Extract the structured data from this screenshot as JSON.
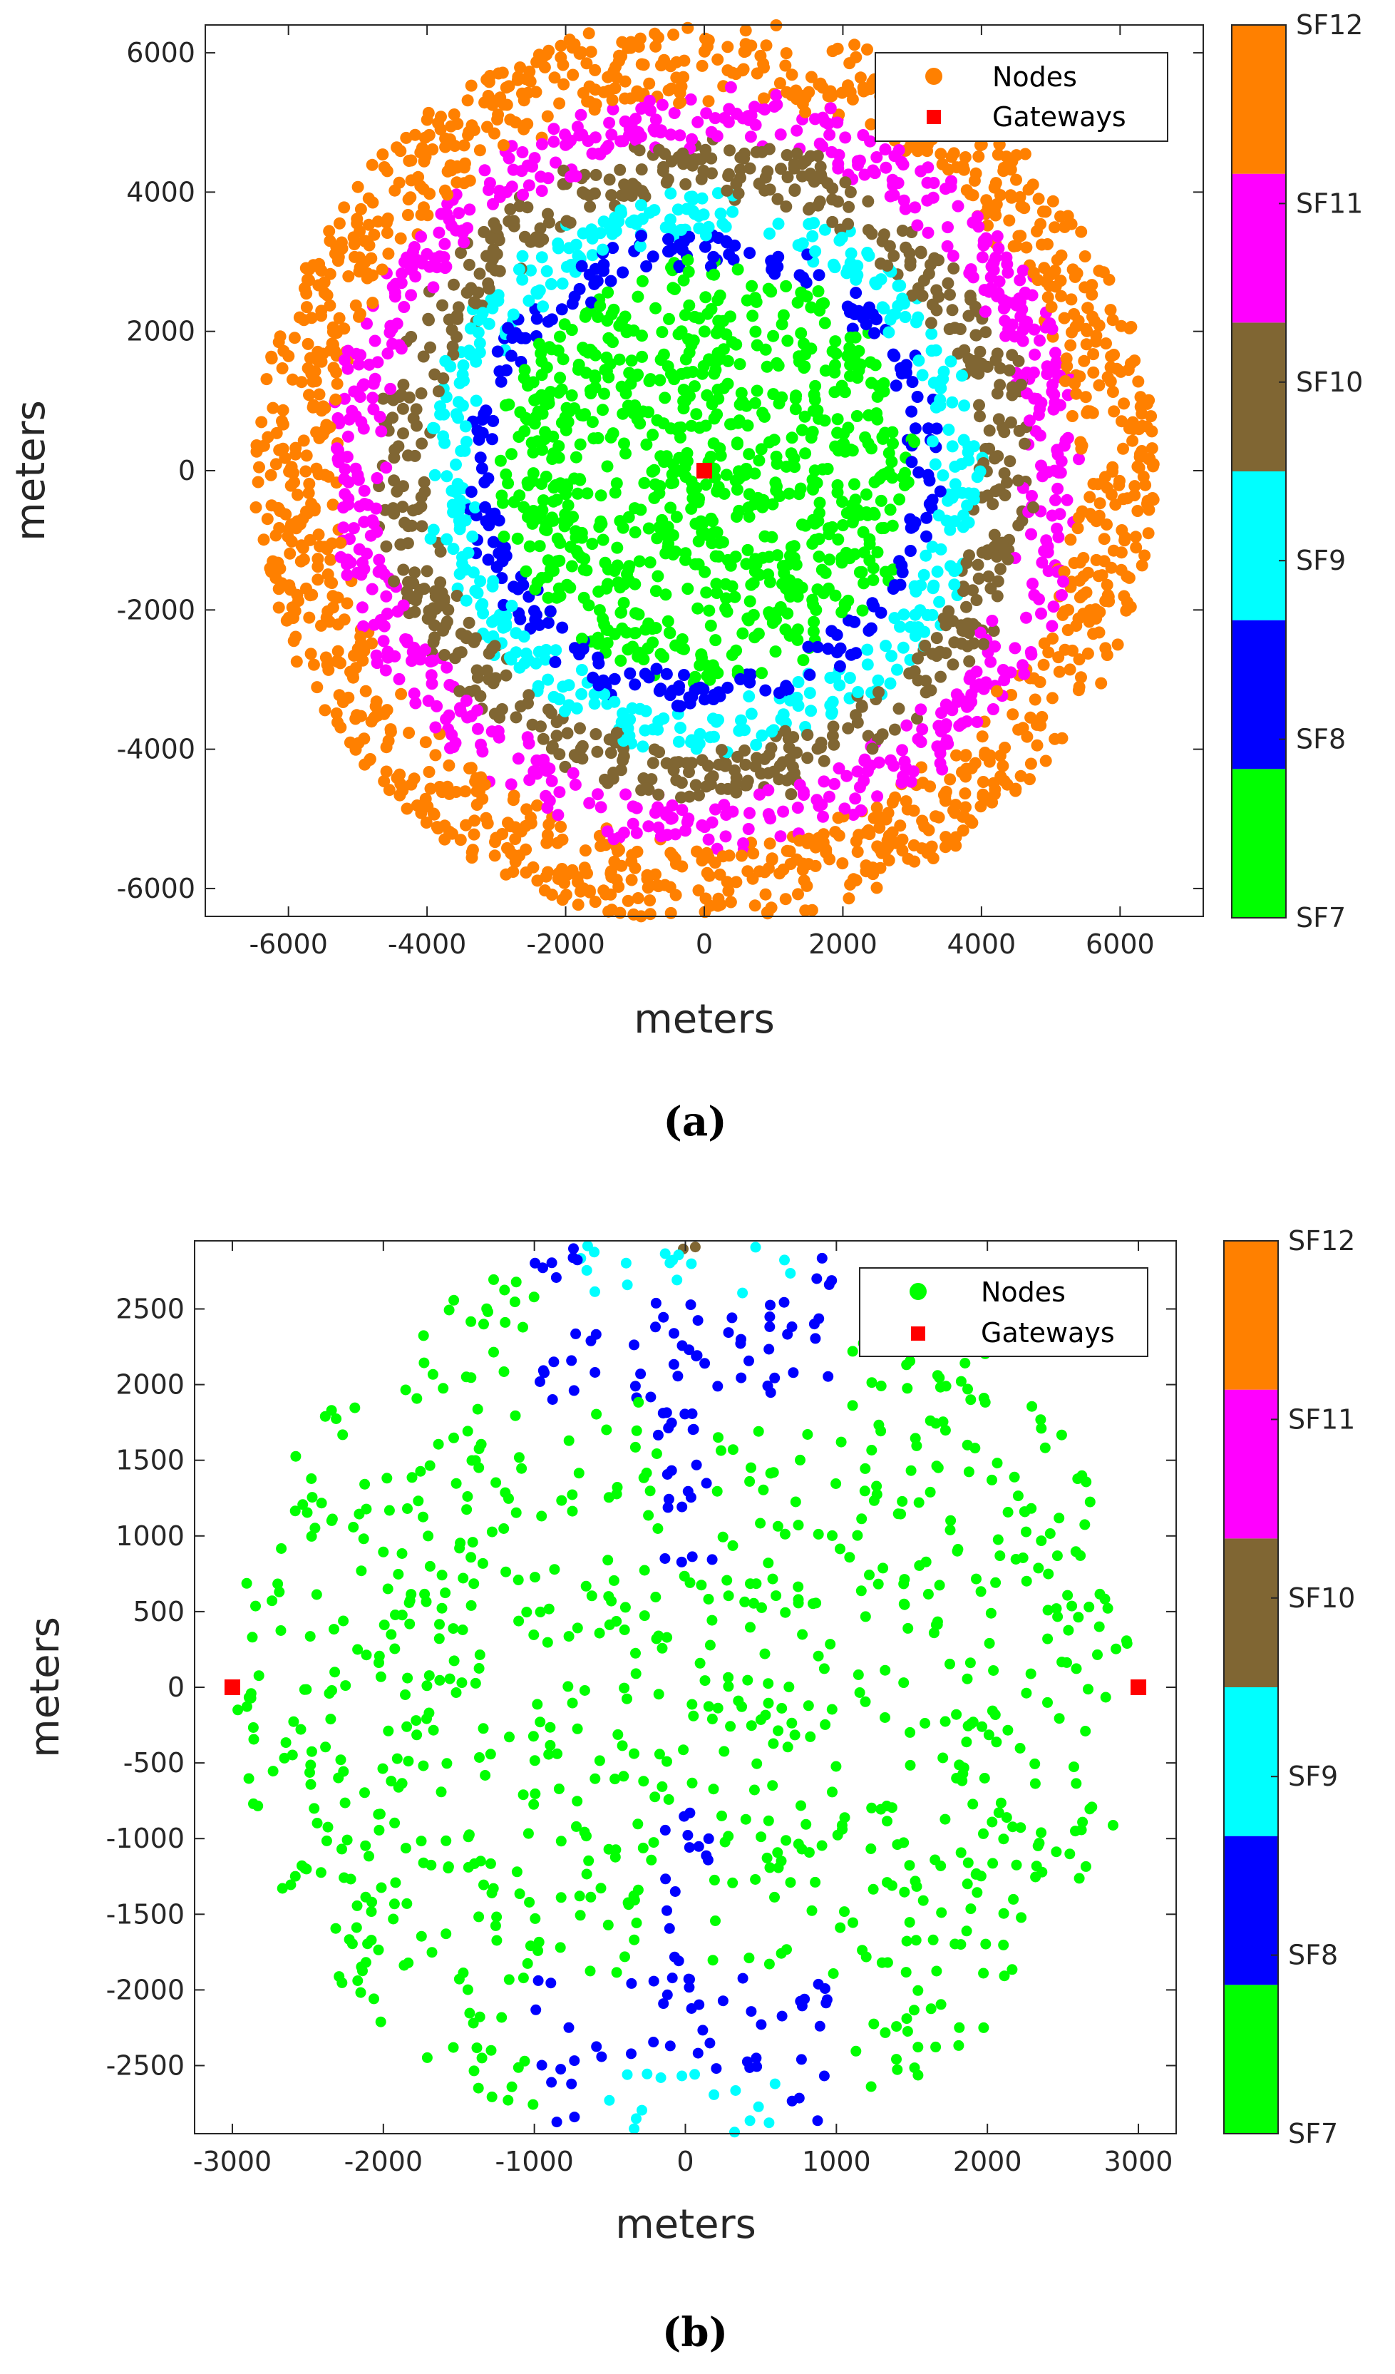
{
  "colors": {
    "SF7": "#00ff00",
    "SF8": "#0000ff",
    "SF9": "#00ffff",
    "SF10": "#806633",
    "SF11": "#ff00ff",
    "SF12": "#ff8000",
    "gateway": "#ff0000"
  },
  "chart_data": [
    {
      "type": "scatter",
      "caption": "(a)",
      "xlabel": "meters",
      "ylabel": "meters",
      "xlim": [
        -7200,
        7200
      ],
      "ylim": [
        -6400,
        6400
      ],
      "xticks": [
        -6000,
        -4000,
        -2000,
        0,
        2000,
        4000,
        6000
      ],
      "yticks": [
        -6000,
        -4000,
        -2000,
        0,
        2000,
        4000,
        6000
      ],
      "legend": [
        "Nodes",
        "Gateways"
      ],
      "legend_nodes_color": "SF12",
      "colorbar": {
        "categories": [
          "SF7",
          "SF8",
          "SF9",
          "SF10",
          "SF11",
          "SF12"
        ],
        "labels": [
          "SF7",
          "SF8",
          "SF9",
          "SF10",
          "SF11",
          "SF12"
        ]
      },
      "gateways": [
        {
          "x": 0,
          "y": 0
        }
      ],
      "node_generation": {
        "count": 4000,
        "radius": 6500,
        "rings": [
          {
            "sf": "SF7",
            "r_max": 3000
          },
          {
            "sf": "SF8",
            "r_max": 3400
          },
          {
            "sf": "SF9",
            "r_max": 4000
          },
          {
            "sf": "SF10",
            "r_max": 4700
          },
          {
            "sf": "SF11",
            "r_max": 5400
          },
          {
            "sf": "SF12",
            "r_max": 6500
          }
        ]
      }
    },
    {
      "type": "scatter",
      "caption": "(b)",
      "xlabel": "meters",
      "ylabel": "meters",
      "xlim": [
        -3250,
        3250
      ],
      "ylim": [
        -2950,
        2950
      ],
      "xticks": [
        -3000,
        -2000,
        -1000,
        0,
        1000,
        2000,
        3000
      ],
      "yticks": [
        -2500,
        -2000,
        -1500,
        -1000,
        -500,
        0,
        500,
        1000,
        1500,
        2000,
        2500
      ],
      "legend": [
        "Nodes",
        "Gateways"
      ],
      "legend_nodes_color": "SF7",
      "colorbar": {
        "categories": [
          "SF7",
          "SF8",
          "SF9",
          "SF10",
          "SF11",
          "SF12"
        ],
        "labels": [
          "SF7",
          "SF8",
          "SF9",
          "SF10",
          "SF11",
          "SF12"
        ]
      },
      "gateways": [
        {
          "x": -3000,
          "y": 0
        },
        {
          "x": 3000,
          "y": 0
        }
      ],
      "node_generation": {
        "count": 1000,
        "radius": 3000,
        "central_band": [
          {
            "sf": "SF10",
            "abs_x_max": 150,
            "abs_y_min": 2880
          },
          {
            "sf": "SF9",
            "abs_x_max": 700,
            "abs_y_min": 2550
          },
          {
            "sf": "SF8",
            "abs_x_max": 1000,
            "abs_y_min": 1900
          },
          {
            "sf": "SF8",
            "abs_x_max": 180,
            "abs_y_min": 800
          }
        ],
        "default_sf": "SF7"
      }
    }
  ]
}
